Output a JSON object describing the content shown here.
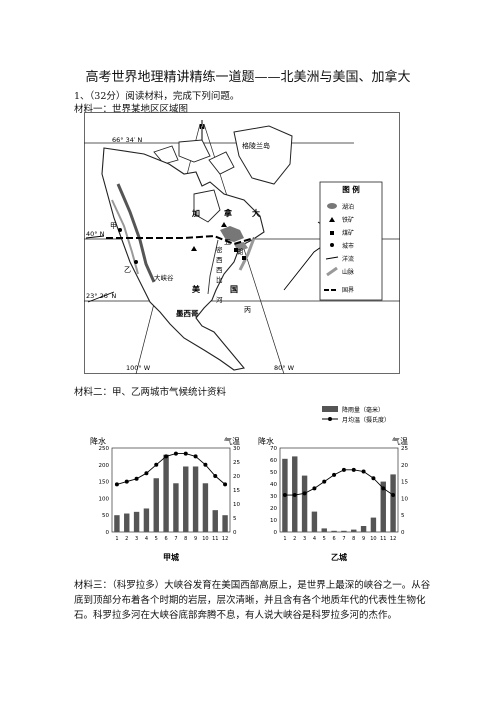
{
  "doc": {
    "title": "高考世界地理精讲精练一道题——北美洲与美国、加拿大",
    "question": "1、（32分）阅读材料，完成下列问题。",
    "material1": "材料一：世界某地区区域图",
    "material2": "材料二：甲、乙两城市气候统计资料",
    "material3": "材料三：（科罗拉多）大峡谷发育在美国西部高原上，是世界上最深的峡谷之一。从谷底到顶部分布着各个时期的岩层，层次清晰，并且含有各个地质年代的代表性生物化石。科罗拉多河在大峡谷底部奔腾不息，有人说大峡谷是科罗拉多河的杰作。"
  },
  "map": {
    "north_label": "N",
    "lat_top": "66° 34′ N",
    "lat_mid": "40° N",
    "lat_bottom": "23° 26′ N",
    "lon_left": "100° W",
    "lon_right": "80° W",
    "greenland": "格陵兰岛",
    "canada": [
      "加",
      "拿",
      "大"
    ],
    "usa": [
      "美",
      "国"
    ],
    "mexico": "墨西哥",
    "jia": "甲",
    "yi": "乙",
    "five_lakes": [
      "五",
      "湖"
    ],
    "mississippi": [
      "密",
      "西",
      "西",
      "比",
      "河"
    ],
    "canyon": "大峡谷",
    "bing": "丙",
    "legend": {
      "title": "图  例",
      "items": [
        "湖泊",
        "铁矿",
        "煤矿",
        "城市",
        "洋流",
        "山脉",
        "国界"
      ]
    }
  },
  "charts": {
    "legend_rain": "降雨量（毫米）",
    "legend_temp": "月均温（摄氏度）",
    "rain_axis": "降水",
    "temp_axis": "气温",
    "months": [
      "1",
      "2",
      "3",
      "4",
      "5",
      "6",
      "7",
      "8",
      "9",
      "10",
      "11",
      "12"
    ]
  },
  "chart_data": [
    {
      "type": "bar",
      "title": "甲城",
      "categories": [
        "1",
        "2",
        "3",
        "4",
        "5",
        "6",
        "7",
        "8",
        "9",
        "10",
        "11",
        "12"
      ],
      "series": [
        {
          "name": "降雨量（毫米）",
          "values": [
            50,
            55,
            60,
            70,
            160,
            230,
            145,
            195,
            195,
            145,
            65,
            50
          ]
        },
        {
          "name": "月均温（摄氏度）",
          "values": [
            17,
            18,
            19,
            21,
            24,
            27,
            28,
            28,
            27,
            24,
            20,
            17
          ]
        }
      ],
      "ylim_rain": [
        0,
        250
      ],
      "ylim_temp": [
        0,
        30
      ],
      "rain_ticks": [
        "0",
        "50",
        "100",
        "150",
        "200",
        "250"
      ],
      "temp_ticks": [
        "0",
        "5",
        "10",
        "15",
        "20",
        "25",
        "30"
      ]
    },
    {
      "type": "bar",
      "title": "乙城",
      "categories": [
        "1",
        "2",
        "3",
        "4",
        "5",
        "6",
        "7",
        "8",
        "9",
        "10",
        "11",
        "12"
      ],
      "series": [
        {
          "name": "降雨量（毫米）",
          "values": [
            61,
            63,
            47,
            17,
            3,
            1,
            1,
            2,
            5,
            12,
            42,
            48
          ]
        },
        {
          "name": "月均温（摄氏度）",
          "values": [
            11,
            11,
            11.5,
            13,
            15,
            17,
            18.5,
            18.5,
            18,
            16,
            13,
            11
          ]
        }
      ],
      "ylim_rain": [
        0,
        70
      ],
      "ylim_temp": [
        0,
        25
      ],
      "rain_ticks": [
        "0",
        "10",
        "20",
        "30",
        "40",
        "50",
        "60",
        "70"
      ],
      "temp_ticks": [
        "0",
        "5",
        "10",
        "15",
        "20",
        "25"
      ]
    }
  ]
}
